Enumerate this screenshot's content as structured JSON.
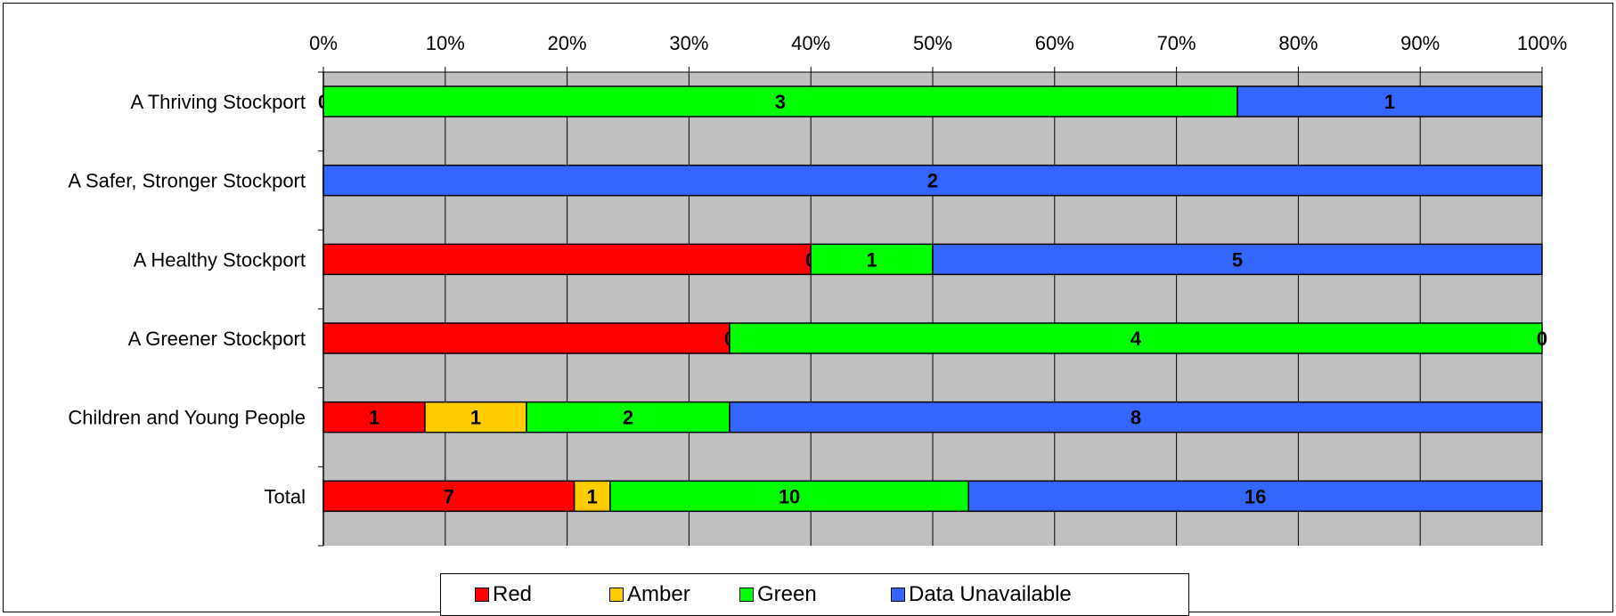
{
  "chart_data": {
    "type": "bar",
    "orientation": "horizontal",
    "stacking": "100% stacked",
    "categories": [
      "A Thriving Stockport",
      "A Safer, Stronger Stockport",
      "A Healthy Stockport",
      "A Greener Stockport",
      "Children and Young People",
      "Total"
    ],
    "series": [
      {
        "name": "Red",
        "color": "#ff0000",
        "values": [
          0,
          0,
          4,
          2,
          1,
          7
        ]
      },
      {
        "name": "Amber",
        "color": "#ffcc00",
        "values": [
          0,
          0,
          0,
          0,
          1,
          1
        ]
      },
      {
        "name": "Green",
        "color": "#00ff00",
        "values": [
          3,
          0,
          1,
          4,
          2,
          10
        ]
      },
      {
        "name": "Data Unavailable",
        "color": "#3366ff",
        "values": [
          1,
          2,
          5,
          0,
          8,
          16
        ]
      }
    ],
    "data_labels_shown": [
      [
        true,
        false,
        false,
        false,
        true,
        true
      ],
      [
        false,
        false,
        true,
        true,
        true,
        true
      ],
      [
        true,
        false,
        true,
        true,
        true,
        true
      ],
      [
        true,
        true,
        true,
        true,
        true,
        true
      ]
    ],
    "x_ticks": [
      "0%",
      "10%",
      "20%",
      "30%",
      "40%",
      "50%",
      "60%",
      "70%",
      "80%",
      "90%",
      "100%"
    ],
    "xlim": [
      0,
      100
    ],
    "x_axis_position": "top",
    "plot_background": "#c0c0c0",
    "grid": true,
    "legend_position": "bottom"
  }
}
